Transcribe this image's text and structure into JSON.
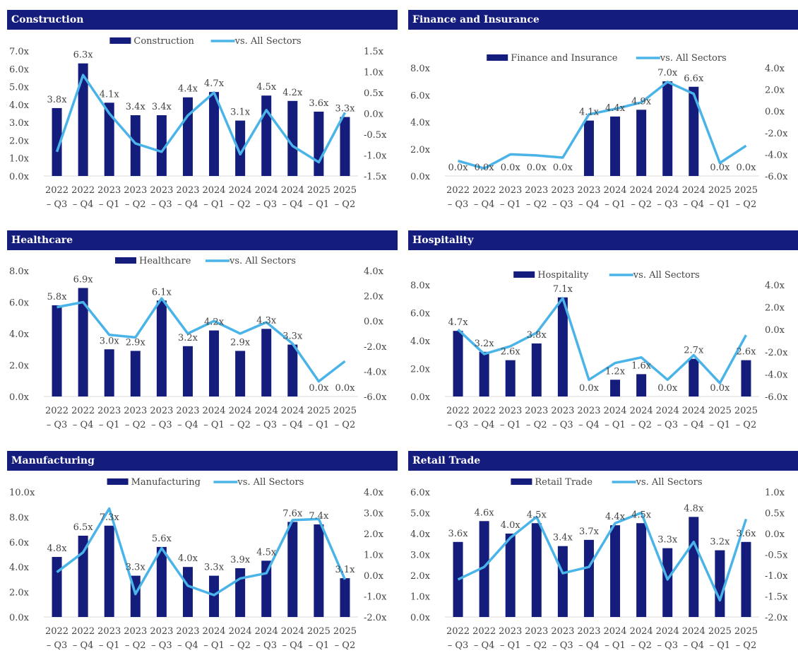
{
  "colors": {
    "header": "#141c7c",
    "bar": "#141c7c",
    "line": "#4ab3e8"
  },
  "chart_data": [
    {
      "type": "bar+line",
      "title": "Construction",
      "categories": [
        "2022 - Q3",
        "2022 - Q4",
        "2023 - Q1",
        "2023 - Q2",
        "2023 - Q3",
        "2023 - Q4",
        "2024 - Q1",
        "2024 - Q2",
        "2024 - Q3",
        "2024 - Q4",
        "2025 - Q1",
        "2025 - Q2"
      ],
      "series": [
        {
          "name": "Construction",
          "axis": "left",
          "values": [
            3.8,
            6.3,
            4.1,
            3.4,
            3.4,
            4.4,
            4.7,
            3.1,
            4.5,
            4.2,
            3.6,
            3.3
          ],
          "labels": [
            "3.8x",
            "6.3x",
            "4.1x",
            "3.4x",
            "3.4x",
            "4.4x",
            "4.7x",
            "3.1x",
            "4.5x",
            "4.2x",
            "3.6x",
            "3.3x"
          ]
        },
        {
          "name": "vs. All Sectors",
          "axis": "right",
          "values": [
            -0.92,
            0.92,
            0.0,
            -0.72,
            -0.92,
            -0.05,
            0.5,
            -0.98,
            0.08,
            -0.78,
            -1.17,
            0.02
          ]
        }
      ],
      "ylim": [
        0,
        7
      ],
      "yticks": [
        "0.0x",
        "1.0x",
        "2.0x",
        "3.0x",
        "4.0x",
        "5.0x",
        "6.0x",
        "7.0x"
      ],
      "y2lim": [
        -1.5,
        1.5
      ],
      "y2ticks": [
        "-1.5x",
        "-1.0x",
        "-0.5x",
        "0.0x",
        "0.5x",
        "1.0x",
        "1.5x"
      ],
      "legend": "top"
    },
    {
      "type": "bar+line",
      "title": "Finance and Insurance",
      "categories": [
        "2022 - Q3",
        "2022 - Q4",
        "2023 - Q1",
        "2023 - Q2",
        "2023 - Q3",
        "2023 - Q4",
        "2024 - Q1",
        "2024 - Q2",
        "2024 - Q3",
        "2024 - Q4",
        "2025 - Q1",
        "2025 - Q2"
      ],
      "series": [
        {
          "name": "Finance and Insurance",
          "axis": "left",
          "values": [
            0,
            0,
            0,
            0,
            0,
            4.1,
            4.4,
            4.9,
            7.0,
            6.6,
            0,
            0
          ],
          "labels": [
            "0.0x",
            "0.0x",
            "0.0x",
            "0.0x",
            "0.0x",
            "4.1x",
            "4.4x",
            "4.9x",
            "7.0x",
            "6.6x",
            "0.0x",
            "0.0x"
          ]
        },
        {
          "name": "vs. All Sectors",
          "axis": "right",
          "values": [
            -4.6,
            -5.3,
            -4.0,
            -4.1,
            -4.3,
            -0.3,
            0.2,
            0.8,
            2.7,
            1.6,
            -4.8,
            -3.2
          ]
        }
      ],
      "ylim": [
        0,
        8
      ],
      "yticks": [
        "0.0x",
        "2.0x",
        "4.0x",
        "6.0x",
        "8.0x"
      ],
      "y2lim": [
        -6,
        4
      ],
      "y2ticks": [
        "-6.0x",
        "-4.0x",
        "-2.0x",
        "0.0x",
        "2.0x",
        "4.0x"
      ],
      "legend": "top"
    },
    {
      "type": "bar+line",
      "title": "Healthcare",
      "categories": [
        "2022 - Q3",
        "2022 - Q4",
        "2023 - Q1",
        "2023 - Q2",
        "2023 - Q3",
        "2023 - Q4",
        "2024 - Q1",
        "2024 - Q2",
        "2024 - Q3",
        "2024 - Q4",
        "2025 - Q1",
        "2025 - Q2"
      ],
      "series": [
        {
          "name": "Healthcare",
          "axis": "left",
          "values": [
            5.8,
            6.9,
            3.0,
            2.9,
            6.1,
            3.2,
            4.2,
            2.9,
            4.3,
            3.3,
            0,
            0
          ],
          "labels": [
            "5.8x",
            "6.9x",
            "3.0x",
            "2.9x",
            "6.1x",
            "3.2x",
            "4.2x",
            "2.9x",
            "4.3x",
            "3.3x",
            "0.0x",
            "0.0x"
          ]
        },
        {
          "name": "vs. All Sectors",
          "axis": "right",
          "values": [
            1.1,
            1.5,
            -1.1,
            -1.3,
            1.8,
            -1.0,
            0.0,
            -1.0,
            -0.1,
            -1.8,
            -4.8,
            -3.2
          ]
        }
      ],
      "ylim": [
        0,
        8
      ],
      "yticks": [
        "0.0x",
        "2.0x",
        "4.0x",
        "6.0x",
        "8.0x"
      ],
      "y2lim": [
        -6,
        4
      ],
      "y2ticks": [
        "-6.0x",
        "-4.0x",
        "-2.0x",
        "0.0x",
        "2.0x",
        "4.0x"
      ],
      "legend": "top"
    },
    {
      "type": "bar+line",
      "title": "Hospitality",
      "categories": [
        "2022 - Q3",
        "2022 - Q4",
        "2023 - Q1",
        "2023 - Q2",
        "2023 - Q3",
        "2023 - Q4",
        "2024 - Q1",
        "2024 - Q2",
        "2024 - Q3",
        "2024 - Q4",
        "2025 - Q1",
        "2025 - Q2"
      ],
      "series": [
        {
          "name": "Hospitality",
          "axis": "left",
          "values": [
            4.7,
            3.2,
            2.6,
            3.8,
            7.1,
            0,
            1.2,
            1.6,
            0,
            2.7,
            0,
            2.6
          ],
          "labels": [
            "4.7x",
            "3.2x",
            "2.6x",
            "3.8x",
            "7.1x",
            "0.0x",
            "1.2x",
            "1.6x",
            "0.0x",
            "2.7x",
            "0.0x",
            "2.6x"
          ]
        },
        {
          "name": "vs. All Sectors",
          "axis": "right",
          "values": [
            0.0,
            -2.2,
            -1.5,
            -0.3,
            2.8,
            -4.5,
            -3.0,
            -2.5,
            -4.5,
            -2.3,
            -4.8,
            -0.5
          ]
        }
      ],
      "ylim": [
        0,
        8
      ],
      "yticks": [
        "0.0x",
        "2.0x",
        "4.0x",
        "6.0x",
        "8.0x"
      ],
      "y2lim": [
        -6,
        4
      ],
      "y2ticks": [
        "-6.0x",
        "-4.0x",
        "-2.0x",
        "0.0x",
        "2.0x",
        "4.0x"
      ],
      "legend": "top"
    },
    {
      "type": "bar+line",
      "title": "Manufacturing",
      "categories": [
        "2022 - Q3",
        "2022 - Q4",
        "2023 - Q1",
        "2023 - Q2",
        "2023 - Q3",
        "2023 - Q4",
        "2024 - Q1",
        "2024 - Q2",
        "2024 - Q3",
        "2024 - Q4",
        "2025 - Q1",
        "2025 - Q2"
      ],
      "series": [
        {
          "name": "Manufacturing",
          "axis": "left",
          "values": [
            4.8,
            6.5,
            7.3,
            3.3,
            5.6,
            4.0,
            3.3,
            3.9,
            4.5,
            7.6,
            7.4,
            3.1
          ],
          "labels": [
            "4.8x",
            "6.5x",
            "7.3x",
            "3.3x",
            "5.6x",
            "4.0x",
            "3.3x",
            "3.9x",
            "4.5x",
            "7.6x",
            "7.4x",
            "3.1x"
          ]
        },
        {
          "name": "vs. All Sectors",
          "axis": "right",
          "values": [
            0.15,
            1.1,
            3.2,
            -0.9,
            1.3,
            -0.5,
            -0.95,
            -0.15,
            0.1,
            2.65,
            2.7,
            -0.2
          ]
        }
      ],
      "ylim": [
        0,
        10
      ],
      "yticks": [
        "0.0x",
        "2.0x",
        "4.0x",
        "6.0x",
        "8.0x",
        "10.0x"
      ],
      "y2lim": [
        -2,
        4
      ],
      "y2ticks": [
        "-2.0x",
        "-1.0x",
        "0.0x",
        "1.0x",
        "2.0x",
        "3.0x",
        "4.0x"
      ],
      "legend": "top"
    },
    {
      "type": "bar+line",
      "title": "Retail Trade",
      "categories": [
        "2022 - Q3",
        "2022 - Q4",
        "2023 - Q1",
        "2023 - Q2",
        "2023 - Q3",
        "2023 - Q4",
        "2024 - Q1",
        "2024 - Q2",
        "2024 - Q3",
        "2024 - Q4",
        "2025 - Q1",
        "2025 - Q2"
      ],
      "series": [
        {
          "name": "Retail Trade",
          "axis": "left",
          "values": [
            3.6,
            4.6,
            4.0,
            4.5,
            3.4,
            3.7,
            4.4,
            4.5,
            3.3,
            4.8,
            3.2,
            3.6
          ],
          "labels": [
            "3.6x",
            "4.6x",
            "4.0x",
            "4.5x",
            "3.4x",
            "3.7x",
            "4.4x",
            "4.5x",
            "3.3x",
            "4.8x",
            "3.2x",
            "3.6x"
          ]
        },
        {
          "name": "vs. All Sectors",
          "axis": "right",
          "values": [
            -1.1,
            -0.8,
            -0.1,
            0.4,
            -0.95,
            -0.8,
            0.25,
            0.5,
            -1.1,
            -0.2,
            -1.6,
            0.35
          ]
        }
      ],
      "ylim": [
        0,
        6
      ],
      "yticks": [
        "0.0x",
        "1.0x",
        "2.0x",
        "3.0x",
        "4.0x",
        "5.0x",
        "6.0x"
      ],
      "y2lim": [
        -2,
        1
      ],
      "y2ticks": [
        "-2.0x",
        "-1.5x",
        "-1.0x",
        "-0.5x",
        "0.0x",
        "0.5x",
        "1.0x"
      ],
      "legend": "top"
    }
  ]
}
